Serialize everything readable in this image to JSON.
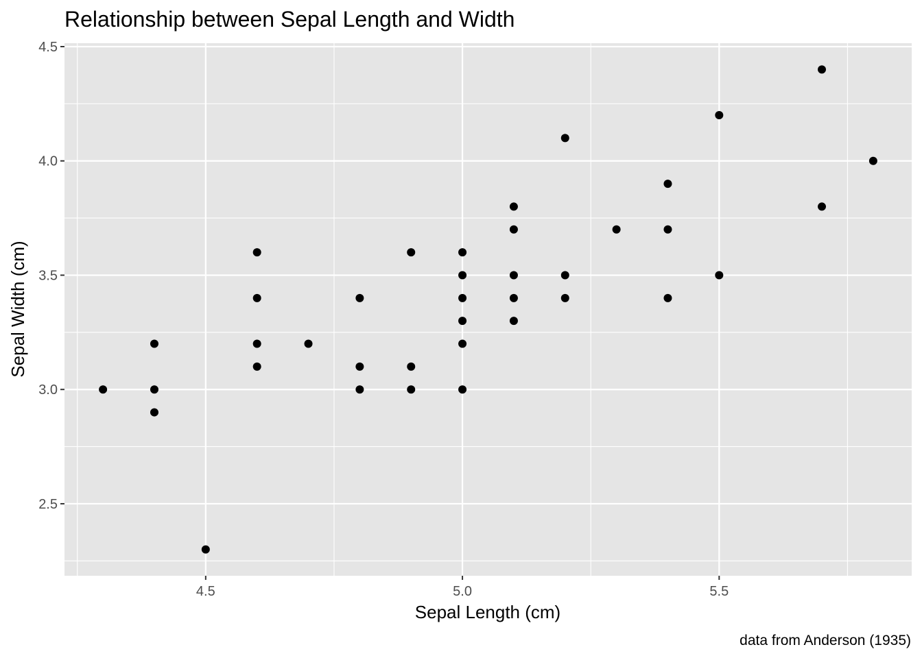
{
  "chart_data": {
    "type": "scatter",
    "title": "Relationship between Sepal Length and Width",
    "xlabel": "Sepal Length (cm)",
    "ylabel": "Sepal Width (cm)",
    "caption": "data from Anderson (1935)",
    "xlim": [
      4.225,
      5.875
    ],
    "ylim": [
      2.185,
      4.515
    ],
    "x_major_ticks": [
      4.5,
      5.0,
      5.5
    ],
    "x_tick_labels": [
      "4.5",
      "5.0",
      "5.5"
    ],
    "x_minor_ticks": [
      4.25,
      4.75,
      5.25,
      5.75
    ],
    "y_major_ticks": [
      2.5,
      3.0,
      3.5,
      4.0,
      4.5
    ],
    "y_tick_labels": [
      "2.5",
      "3.0",
      "3.5",
      "4.0",
      "4.5"
    ],
    "y_minor_ticks": [
      2.25,
      2.75,
      3.25,
      3.75,
      4.25
    ],
    "grid": true,
    "legend": "none",
    "point_color": "#000000",
    "panel_color": "#e5e5e5",
    "points": [
      {
        "x": 4.3,
        "y": 3.0
      },
      {
        "x": 4.4,
        "y": 3.2
      },
      {
        "x": 4.4,
        "y": 3.0
      },
      {
        "x": 4.4,
        "y": 2.9
      },
      {
        "x": 4.5,
        "y": 2.3
      },
      {
        "x": 4.6,
        "y": 3.6
      },
      {
        "x": 4.6,
        "y": 3.4
      },
      {
        "x": 4.6,
        "y": 3.2
      },
      {
        "x": 4.6,
        "y": 3.1
      },
      {
        "x": 4.7,
        "y": 3.2
      },
      {
        "x": 4.8,
        "y": 3.4
      },
      {
        "x": 4.8,
        "y": 3.1
      },
      {
        "x": 4.8,
        "y": 3.0
      },
      {
        "x": 4.9,
        "y": 3.6
      },
      {
        "x": 4.9,
        "y": 3.1
      },
      {
        "x": 4.9,
        "y": 3.0
      },
      {
        "x": 5.0,
        "y": 3.6
      },
      {
        "x": 5.0,
        "y": 3.5
      },
      {
        "x": 5.0,
        "y": 3.4
      },
      {
        "x": 5.0,
        "y": 3.3
      },
      {
        "x": 5.0,
        "y": 3.2
      },
      {
        "x": 5.0,
        "y": 3.0
      },
      {
        "x": 5.1,
        "y": 3.8
      },
      {
        "x": 5.1,
        "y": 3.7
      },
      {
        "x": 5.1,
        "y": 3.5
      },
      {
        "x": 5.1,
        "y": 3.4
      },
      {
        "x": 5.1,
        "y": 3.3
      },
      {
        "x": 5.2,
        "y": 4.1
      },
      {
        "x": 5.2,
        "y": 3.5
      },
      {
        "x": 5.2,
        "y": 3.4
      },
      {
        "x": 5.3,
        "y": 3.7
      },
      {
        "x": 5.4,
        "y": 3.9
      },
      {
        "x": 5.4,
        "y": 3.7
      },
      {
        "x": 5.4,
        "y": 3.4
      },
      {
        "x": 5.5,
        "y": 4.2
      },
      {
        "x": 5.5,
        "y": 3.5
      },
      {
        "x": 5.7,
        "y": 4.4
      },
      {
        "x": 5.7,
        "y": 3.8
      },
      {
        "x": 5.8,
        "y": 4.0
      }
    ]
  }
}
